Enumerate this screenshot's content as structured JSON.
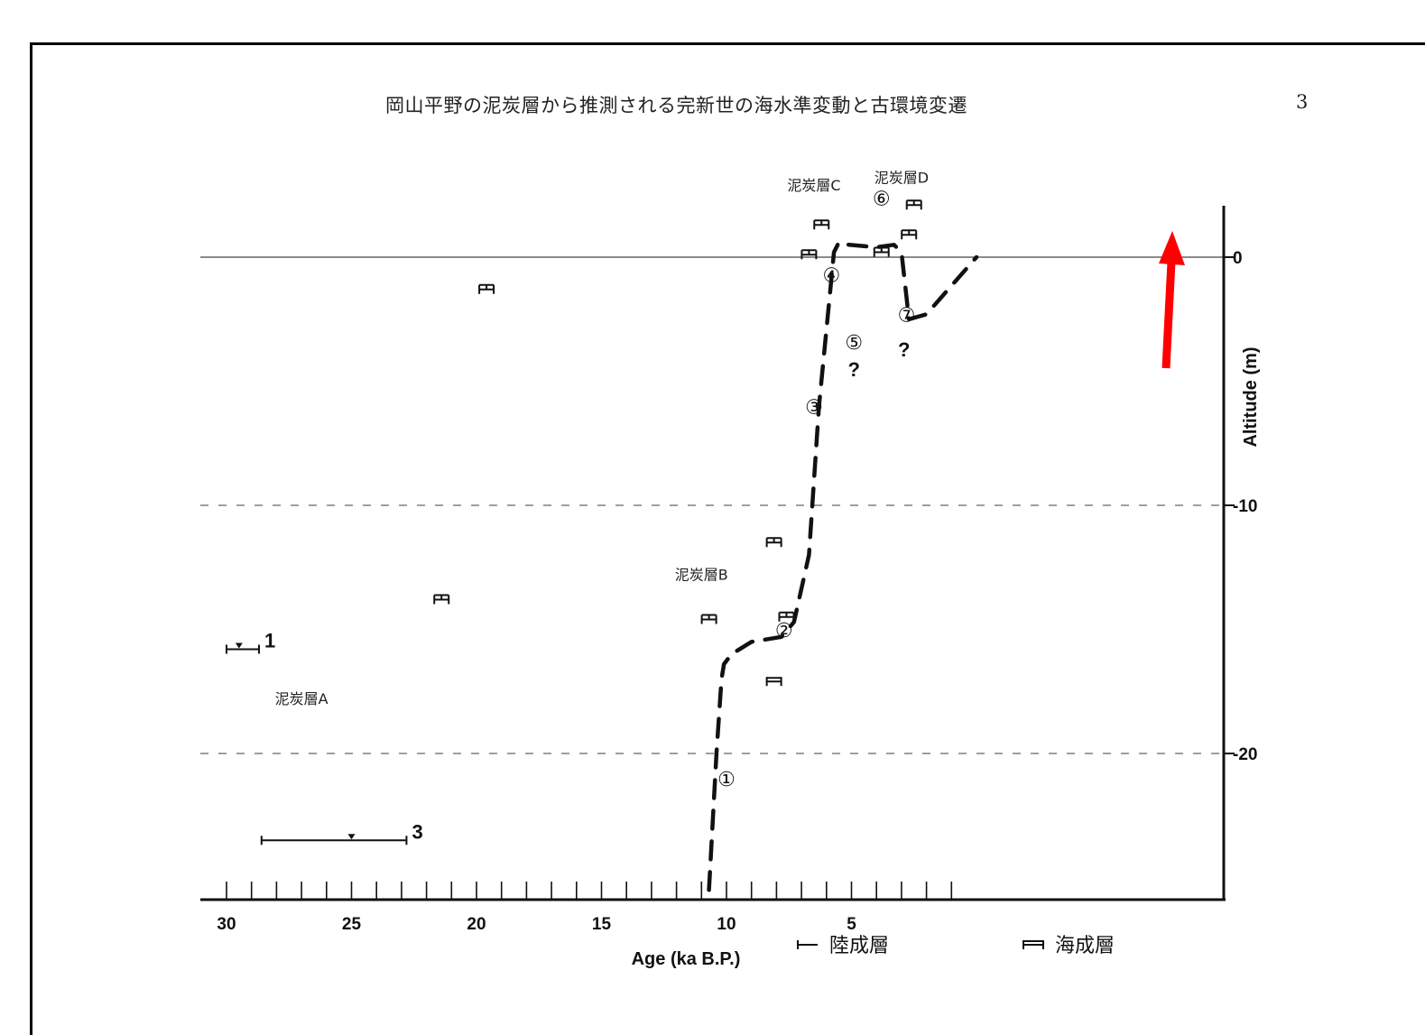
{
  "page": {
    "header": "岡山平野の泥炭層から推測される完新世の海水準変動と古環境変遷",
    "number": "3"
  },
  "chart_data": {
    "type": "line",
    "xlabel": "Age (ka B.P.)",
    "ylabel": "Altitude (m)",
    "x_reversed": true,
    "xlim": [
      30.0,
      0.0
    ],
    "ylim": [
      -26.0,
      2.0
    ],
    "x_ticks": [
      30,
      25,
      20,
      15,
      10,
      5
    ],
    "y_ticks": [
      0,
      -10,
      -20
    ],
    "y_tick_labels": [
      "0",
      "-10",
      "-20"
    ],
    "series": [
      {
        "line_style": "dashed",
        "x": [
          10.7,
          10.4,
          10.2,
          10.1,
          9.8,
          9.0,
          7.8,
          7.3,
          6.7,
          6.3,
          5.7,
          5.5,
          5.1,
          4.0,
          3.3,
          3.0,
          2.7,
          2.0,
          0.0
        ],
        "y": [
          -25.5,
          -20.0,
          -17.0,
          -16.4,
          -16.0,
          -15.5,
          -15.3,
          -14.7,
          -12.0,
          -6.0,
          0.2,
          0.6,
          0.5,
          0.4,
          0.5,
          0.2,
          -2.5,
          -2.3,
          0.0
        ]
      }
    ],
    "reference_lines": [
      {
        "y": 0,
        "style": "solid"
      },
      {
        "y": -10,
        "style": "dashed"
      },
      {
        "y": -20,
        "style": "dashed"
      }
    ],
    "annotations": {
      "peat_labels": [
        {
          "text": "泥炭層A",
          "x": 27.0,
          "y": -18.0
        },
        {
          "text": "泥炭層B",
          "x": 11.0,
          "y": -13.0
        },
        {
          "text": "泥炭層C",
          "x": 6.5,
          "y": 2.7
        },
        {
          "text": "泥炭層D",
          "x": 3.0,
          "y": 3.0
        }
      ],
      "circled_numbers": [
        {
          "text": "①",
          "x": 10.0,
          "y": -21.3
        },
        {
          "text": "②",
          "x": 7.7,
          "y": -15.3
        },
        {
          "text": "③",
          "x": 6.5,
          "y": -6.3
        },
        {
          "text": "④",
          "x": 5.8,
          "y": -1.0
        },
        {
          "text": "⑤",
          "x": 4.9,
          "y": -3.7
        },
        {
          "text": "⑥",
          "x": 3.8,
          "y": 2.1
        },
        {
          "text": "⑦",
          "x": 2.8,
          "y": -2.6
        }
      ],
      "question_marks": [
        {
          "text": "?",
          "x": 4.9,
          "y": -4.8
        },
        {
          "text": "?",
          "x": 2.9,
          "y": -4.0
        }
      ],
      "numbered_ranges": [
        {
          "label": "1",
          "x_from": 30.0,
          "x_to": 28.7,
          "marker_x": 29.5,
          "y": -15.8
        },
        {
          "label": "3",
          "x_from": 28.6,
          "x_to": 22.8,
          "marker_x": 25.0,
          "y": -23.5
        }
      ]
    },
    "age_markers": [
      {
        "x": 19.6,
        "y": -1.3,
        "kind": "terrestrial"
      },
      {
        "x": 21.4,
        "y": -13.8,
        "kind": "terrestrial"
      },
      {
        "x": 10.7,
        "y": -14.6,
        "kind": "terrestrial"
      },
      {
        "x": 8.1,
        "y": -11.5,
        "kind": "terrestrial"
      },
      {
        "x": 7.6,
        "y": -14.5,
        "kind": "terrestrial"
      },
      {
        "x": 8.1,
        "y": -17.1,
        "kind": "marine"
      },
      {
        "x": 6.2,
        "y": 1.3,
        "kind": "terrestrial"
      },
      {
        "x": 6.7,
        "y": 0.1,
        "kind": "terrestrial"
      },
      {
        "x": 3.8,
        "y": 0.2,
        "kind": "terrestrial"
      },
      {
        "x": 2.5,
        "y": 2.1,
        "kind": "terrestrial"
      },
      {
        "x": 2.7,
        "y": 0.9,
        "kind": "terrestrial"
      }
    ],
    "legend": {
      "placement": "bottom",
      "items": [
        {
          "symbol": "⊢",
          "label": "陸成層"
        },
        {
          "symbol": "⊨",
          "label": "海成層"
        }
      ]
    },
    "highlight_arrow": {
      "color": "#ff0000",
      "direction": "up"
    }
  }
}
